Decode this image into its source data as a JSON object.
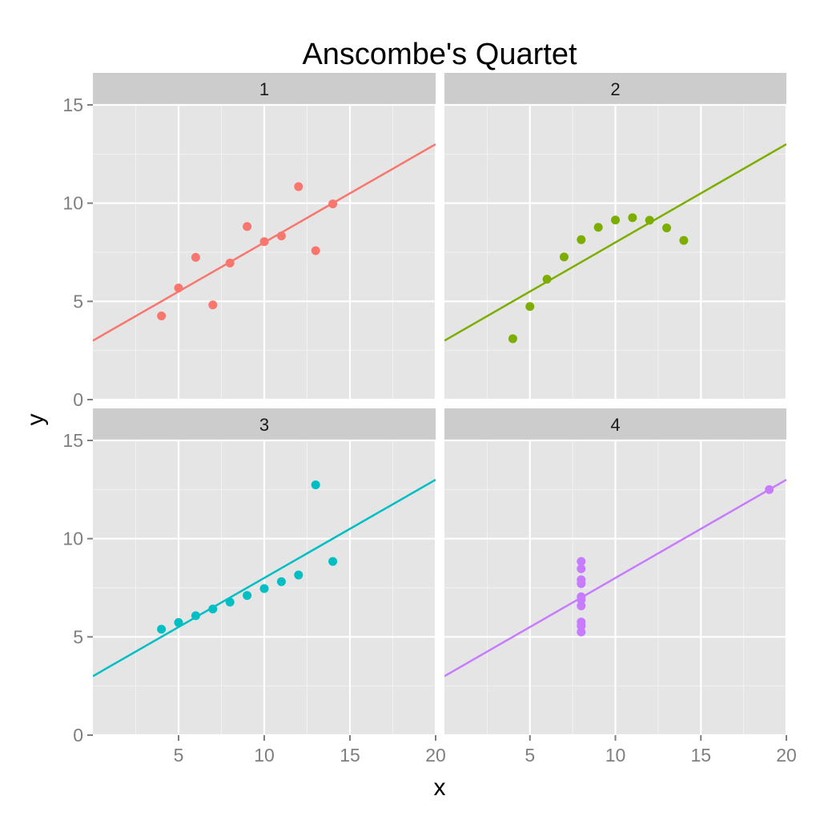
{
  "chart_data": {
    "type": "scatter",
    "title": "Anscombe's Quartet",
    "xlabel": "x",
    "ylabel": "y",
    "xlim": [
      0,
      20
    ],
    "ylim": [
      0,
      15
    ],
    "x_ticks": [
      5,
      10,
      15,
      20
    ],
    "y_ticks": [
      0,
      5,
      10,
      15
    ],
    "grid": true,
    "facets": [
      {
        "label": "1",
        "color": "#F8766D",
        "points": [
          [
            10,
            8.04
          ],
          [
            8,
            6.95
          ],
          [
            13,
            7.58
          ],
          [
            9,
            8.81
          ],
          [
            11,
            8.33
          ],
          [
            14,
            9.96
          ],
          [
            6,
            7.24
          ],
          [
            4,
            4.26
          ],
          [
            12,
            10.84
          ],
          [
            7,
            4.82
          ],
          [
            5,
            5.68
          ]
        ],
        "fit": {
          "intercept": 3.0,
          "slope": 0.5
        }
      },
      {
        "label": "2",
        "color": "#7CAE00",
        "points": [
          [
            10,
            9.14
          ],
          [
            8,
            8.14
          ],
          [
            13,
            8.74
          ],
          [
            9,
            8.77
          ],
          [
            11,
            9.26
          ],
          [
            14,
            8.1
          ],
          [
            6,
            6.13
          ],
          [
            4,
            3.1
          ],
          [
            12,
            9.13
          ],
          [
            7,
            7.26
          ],
          [
            5,
            4.74
          ]
        ],
        "fit": {
          "intercept": 3.0,
          "slope": 0.5
        }
      },
      {
        "label": "3",
        "color": "#00BFC4",
        "points": [
          [
            10,
            7.46
          ],
          [
            8,
            6.77
          ],
          [
            13,
            12.74
          ],
          [
            9,
            7.11
          ],
          [
            11,
            7.81
          ],
          [
            14,
            8.84
          ],
          [
            6,
            6.08
          ],
          [
            4,
            5.39
          ],
          [
            12,
            8.15
          ],
          [
            7,
            6.42
          ],
          [
            5,
            5.73
          ]
        ],
        "fit": {
          "intercept": 3.0,
          "slope": 0.5
        }
      },
      {
        "label": "4",
        "color": "#C77CFF",
        "points": [
          [
            8,
            6.58
          ],
          [
            8,
            5.76
          ],
          [
            8,
            7.71
          ],
          [
            8,
            8.84
          ],
          [
            8,
            8.47
          ],
          [
            8,
            7.04
          ],
          [
            8,
            5.25
          ],
          [
            19,
            12.5
          ],
          [
            8,
            5.56
          ],
          [
            8,
            7.91
          ],
          [
            8,
            6.89
          ]
        ],
        "fit": {
          "intercept": 3.0,
          "slope": 0.5
        }
      }
    ]
  }
}
